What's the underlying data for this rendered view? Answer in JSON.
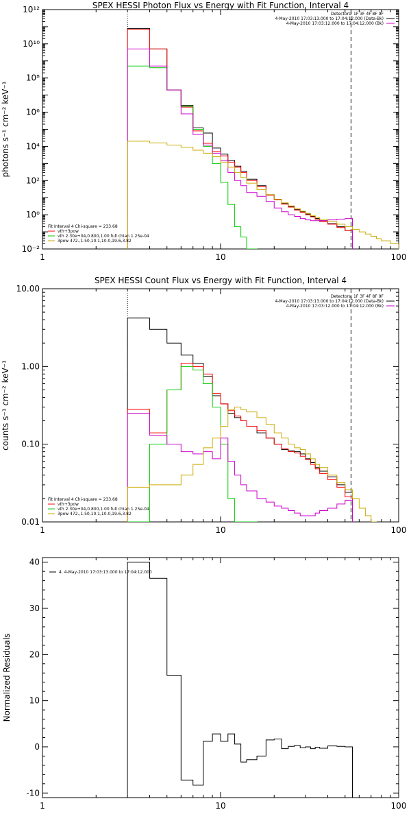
{
  "chart_data": [
    {
      "type": "line",
      "title": "SPEX HESSI Photon Flux vs Energy with Fit Function, Interval 4",
      "xlabel": "",
      "ylabel": "photons s⁻¹ cm⁻² keV⁻¹",
      "xscale": "log",
      "yscale": "log",
      "xlim": [
        1,
        100
      ],
      "ylim": [
        0.01,
        1000000000000.0
      ],
      "x_ticks": [
        {
          "v": 1,
          "label": "1"
        },
        {
          "v": 10,
          "label": "10"
        },
        {
          "v": 100,
          "label": "100"
        }
      ],
      "y_ticks": [
        {
          "v": 0.01,
          "label": "10⁻²"
        },
        {
          "v": 1,
          "label": "10⁰"
        },
        {
          "v": 100,
          "label": "10²"
        },
        {
          "v": 10000,
          "label": "10⁴"
        },
        {
          "v": 1000000,
          "label": "10⁶"
        },
        {
          "v": 100000000,
          "label": "10⁸"
        },
        {
          "v": 10000000000,
          "label": "10¹⁰"
        },
        {
          "v": 1000000000000,
          "label": "10¹²"
        }
      ],
      "vlines": [
        {
          "x": 3,
          "style": "dotted"
        },
        {
          "x": 54,
          "style": "dashed"
        }
      ],
      "annotations_top_right": [
        "Detectors: 1F 3F 4F 8F 9F",
        "4-May-2010 17:03:13.000 to 17:04:12.000 (Data-Bk)",
        "4-May-2010 17:03:12.000 to 17:04:12.000 (Bk)"
      ],
      "legend_lines": [
        "Fit Interval 4   Chi-square = 233.68",
        "vth+3pow",
        "vth 2.30e+04,0.800,1.00  full chian 1.25e-04",
        "3pow 472.,1.50,10.1,10.0,19.6,3.82"
      ],
      "legend_placement": "bottom-left",
      "series": [
        {
          "color": "#000000",
          "edges": [
            3,
            4,
            5,
            6,
            7,
            8,
            9,
            10,
            11,
            12,
            13,
            14,
            16,
            18,
            20,
            22,
            24,
            26,
            28,
            30,
            32,
            34,
            36,
            40,
            45,
            50,
            55
          ],
          "values": [
            80000000000.0,
            5000000000.0,
            20000000.0,
            2500000.0,
            120000.0,
            60000.0,
            8000.0,
            3500.0,
            1500.0,
            700.0,
            350.0,
            120.0,
            50.0,
            15.0,
            8,
            4.5,
            3,
            2,
            1.5,
            1.1,
            0.8,
            0.6,
            0.45,
            0.3,
            0.2,
            0.12
          ]
        },
        {
          "color": "#ff0000",
          "edges": [
            3,
            4,
            5,
            6,
            7,
            8,
            9,
            10,
            11,
            12,
            13,
            14,
            16,
            18,
            20,
            22,
            24,
            26,
            28,
            30,
            32,
            34,
            36,
            40,
            45,
            50,
            55
          ],
          "values": [
            70000000000.0,
            5000000000.0,
            20000000.0,
            2000000.0,
            80000.0,
            15000.0,
            5000.0,
            2800.0,
            1200.0,
            600.0,
            300.0,
            100.0,
            45.0,
            14.0,
            7.5,
            4.2,
            2.8,
            1.9,
            1.4,
            1,
            0.75,
            0.55,
            0.4,
            0.28,
            0.18,
            0.12
          ]
        },
        {
          "color": "#00cc00",
          "edges": [
            3,
            4,
            5,
            6,
            7,
            8,
            9,
            10,
            11,
            12,
            13,
            14,
            16
          ],
          "values": [
            500000000.0,
            400000000.0,
            20000000.0,
            2200000.0,
            100000.0,
            10000.0,
            1000.0,
            80.0,
            4.0,
            0.2,
            0.05,
            0.01
          ]
        },
        {
          "color": "#cc00cc",
          "edges": [
            3,
            4,
            5,
            6,
            7,
            8,
            9,
            10,
            11,
            12,
            13,
            14,
            16,
            18,
            20,
            22,
            24,
            26,
            28,
            30,
            32,
            34,
            36,
            40,
            45,
            50,
            55
          ],
          "values": [
            5000000000.0,
            500000000.0,
            20000000.0,
            800000.0,
            50000.0,
            12000.0,
            4000.0,
            1500.0,
            300.0,
            100.0,
            50.0,
            20.0,
            12.0,
            6,
            2.5,
            1.5,
            1,
            0.8,
            0.6,
            0.5,
            0.45,
            0.45,
            0.45,
            0.5,
            0.55,
            0.6
          ]
        },
        {
          "color": "#ccaa00",
          "edges": [
            3,
            4,
            5,
            6,
            7,
            8,
            9,
            10,
            11,
            12,
            13,
            14,
            16,
            18,
            20,
            22,
            24,
            26,
            28,
            30,
            32,
            34,
            36,
            40,
            45,
            50,
            55,
            60,
            65,
            70,
            75,
            80,
            90,
            100
          ],
          "values": [
            20000.0,
            16000.0,
            12000.0,
            9000.0,
            6000.0,
            4000.0,
            2500.0,
            1200.0,
            600.0,
            300.0,
            150.0,
            70.0,
            30.0,
            15.0,
            8,
            5,
            3.3,
            2.3,
            1.6,
            1.2,
            0.9,
            0.7,
            0.55,
            0.4,
            0.28,
            0.2,
            0.14,
            0.1,
            0.075,
            0.055,
            0.04,
            0.03,
            0.02
          ]
        }
      ]
    },
    {
      "type": "line",
      "title": "SPEX HESSI Count Flux vs Energy with Fit Function, Interval 4",
      "xlabel": "",
      "ylabel": "counts s⁻¹ cm⁻² keV⁻¹",
      "xscale": "log",
      "yscale": "log",
      "xlim": [
        1,
        100
      ],
      "ylim": [
        0.01,
        10
      ],
      "x_ticks": [
        {
          "v": 1,
          "label": "1"
        },
        {
          "v": 10,
          "label": "10"
        },
        {
          "v": 100,
          "label": "100"
        }
      ],
      "y_ticks": [
        {
          "v": 0.01,
          "label": "0.01"
        },
        {
          "v": 0.1,
          "label": "0.10"
        },
        {
          "v": 1,
          "label": "1.00"
        },
        {
          "v": 10,
          "label": "10.00"
        }
      ],
      "vlines": [
        {
          "x": 3,
          "style": "dotted"
        },
        {
          "x": 54,
          "style": "dashed"
        }
      ],
      "annotations_top_right": [
        "Detectors: 1F 3F 4F 8F 9F",
        "4-May-2010 17:03:13.000 to 17:04:12.000 (Data-Bk)",
        "4-May-2010 17:03:12.000 to 17:04:12.000 (Bk)"
      ],
      "legend_lines": [
        "Fit Interval 4   Chi-square = 233.68",
        "vth+3pow",
        "vth 2.30e+04,0.800,1.00  full chian 1.25e-04",
        "3pow 472.,1.50,10.1,10.0,19.6,3.82"
      ],
      "legend_placement": "bottom-left",
      "series": [
        {
          "color": "#000000",
          "edges": [
            3,
            4,
            5,
            6,
            7,
            8,
            9,
            10,
            11,
            12,
            13,
            14,
            16,
            18,
            20,
            22,
            24,
            26,
            28,
            30,
            32,
            34,
            36,
            40,
            45,
            50,
            55
          ],
          "values": [
            4.2,
            3,
            2,
            1.4,
            1.1,
            0.75,
            0.42,
            0.33,
            0.25,
            0.22,
            0.2,
            0.17,
            0.14,
            0.12,
            0.1,
            0.085,
            0.082,
            0.08,
            0.075,
            0.065,
            0.058,
            0.05,
            0.045,
            0.038,
            0.03,
            0.024
          ]
        },
        {
          "color": "#ff0000",
          "edges": [
            3,
            4,
            5,
            6,
            7,
            8,
            9,
            10,
            11,
            12,
            13,
            14,
            16,
            18,
            20,
            22,
            24,
            26,
            28,
            30,
            32,
            34,
            36,
            40,
            45,
            50,
            55
          ],
          "values": [
            0.28,
            0.14,
            0.5,
            1.1,
            1,
            0.8,
            0.45,
            0.33,
            0.27,
            0.23,
            0.2,
            0.17,
            0.15,
            0.12,
            0.1,
            0.087,
            0.08,
            0.077,
            0.07,
            0.063,
            0.055,
            0.048,
            0.042,
            0.035,
            0.028,
            0.021
          ]
        },
        {
          "color": "#00cc00",
          "edges": [
            3,
            4,
            5,
            6,
            7,
            8,
            9,
            10,
            11,
            12,
            13,
            14,
            16
          ],
          "values": [
            0.01,
            0.1,
            0.5,
            1,
            0.9,
            0.6,
            0.3,
            0.1,
            0.02,
            0.01,
            0.01,
            0.01
          ]
        },
        {
          "color": "#cc00cc",
          "edges": [
            3,
            4,
            5,
            6,
            7,
            8,
            9,
            10,
            11,
            12,
            13,
            14,
            16,
            18,
            20,
            22,
            24,
            26,
            28,
            30,
            32,
            34,
            36,
            40,
            45,
            50,
            55
          ],
          "values": [
            0.25,
            0.13,
            0.1,
            0.08,
            0.075,
            0.08,
            0.065,
            0.12,
            0.06,
            0.04,
            0.03,
            0.025,
            0.02,
            0.018,
            0.016,
            0.015,
            0.014,
            0.013,
            0.012,
            0.012,
            0.012,
            0.013,
            0.014,
            0.015,
            0.017,
            0.019
          ]
        },
        {
          "color": "#ccaa00",
          "edges": [
            3,
            4,
            5,
            6,
            7,
            8,
            9,
            10,
            11,
            12,
            13,
            14,
            16,
            18,
            20,
            22,
            24,
            26,
            28,
            30,
            32,
            34,
            36,
            40,
            45,
            50,
            55,
            60,
            65,
            70,
            75
          ],
          "values": [
            0.028,
            0.03,
            0.03,
            0.04,
            0.055,
            0.09,
            0.12,
            0.17,
            0.28,
            0.3,
            0.28,
            0.26,
            0.22,
            0.18,
            0.14,
            0.12,
            0.1,
            0.09,
            0.085,
            0.075,
            0.065,
            0.055,
            0.05,
            0.04,
            0.032,
            0.026,
            0.02,
            0.015,
            0.012,
            0.01
          ]
        }
      ]
    },
    {
      "type": "line",
      "title": "",
      "xlabel": "",
      "ylabel": "Normalized Residuals",
      "xscale": "log",
      "yscale": "linear",
      "xlim": [
        1,
        100
      ],
      "ylim": [
        -11,
        41
      ],
      "x_ticks": [
        {
          "v": 1,
          "label": "1"
        },
        {
          "v": 10,
          "label": "10"
        },
        {
          "v": 100,
          "label": "100"
        }
      ],
      "y_ticks": [
        {
          "v": -10,
          "label": "-10"
        },
        {
          "v": 0,
          "label": "0"
        },
        {
          "v": 10,
          "label": "10"
        },
        {
          "v": 20,
          "label": "20"
        },
        {
          "v": 30,
          "label": "30"
        },
        {
          "v": 40,
          "label": "40"
        }
      ],
      "legend_lines": [
        "4.  4-May-2010 17:03:13.000 to 17:04:12.000"
      ],
      "legend_placement": "top-left",
      "series": [
        {
          "color": "#000000",
          "edges": [
            3,
            4,
            5,
            6,
            7,
            8,
            9,
            10,
            11,
            12,
            13,
            14,
            16,
            18,
            20,
            22,
            24,
            26,
            28,
            30,
            32,
            34,
            36,
            40,
            45,
            50,
            55
          ],
          "values": [
            40,
            36.5,
            15.5,
            -7.2,
            -8.3,
            1.2,
            2.8,
            1.2,
            2.8,
            0.6,
            -3.3,
            -2.8,
            -2,
            1.5,
            1.7,
            -0.4,
            0.1,
            0.3,
            -0.2,
            0,
            -0.4,
            -0.1,
            -0.3,
            0.2,
            0.1,
            0
          ]
        }
      ]
    }
  ]
}
